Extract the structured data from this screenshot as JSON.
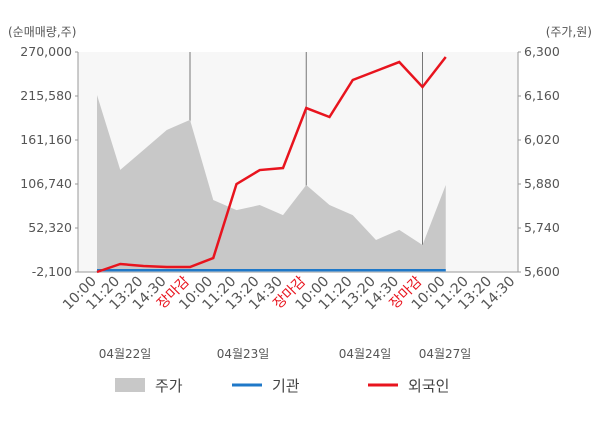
{
  "chart_data": {
    "type": "line",
    "y_axis_label": "(순매매량,주)",
    "y2_axis_label": "(주가,원)",
    "categories": [
      "10:00",
      "11:20",
      "13:20",
      "14:30",
      "장마감",
      "10:00",
      "11:20",
      "13:20",
      "14:30",
      "장마감",
      "10:00",
      "11:20",
      "13:20",
      "14:30",
      "장마감",
      "10:00",
      "11:20",
      "13:20",
      "14:30"
    ],
    "date_labels": [
      "04월22일",
      "04월23일",
      "04월24일",
      "04월27일"
    ],
    "ylim": [
      -2100,
      270000
    ],
    "yticks": [
      {
        "value": -2100,
        "label": "-2,100"
      },
      {
        "value": 52320,
        "label": "52,320"
      },
      {
        "value": 106740,
        "label": "106,740"
      },
      {
        "value": 161160,
        "label": "161,160"
      },
      {
        "value": 215580,
        "label": "215,580"
      },
      {
        "value": 270000,
        "label": "270,000"
      }
    ],
    "y2lim": [
      5600,
      6300
    ],
    "y2ticks": [
      {
        "value": 5600,
        "label": "5,600"
      },
      {
        "value": 5740,
        "label": "5,740"
      },
      {
        "value": 5880,
        "label": "5,880"
      },
      {
        "value": 6020,
        "label": "6,020"
      },
      {
        "value": 6160,
        "label": "6,160"
      },
      {
        "value": 6300,
        "label": "6,300"
      }
    ],
    "series": [
      {
        "name": "주가",
        "color": "#c8c8c8",
        "axis": "y2",
        "kind": "area",
        "values": [
          6163,
          5925,
          5988,
          6052,
          6084,
          5829,
          5797,
          5813,
          5781,
          5877,
          5813,
          5781,
          5702,
          5734,
          5686,
          5877,
          null,
          null,
          null
        ]
      },
      {
        "name": "기관",
        "color": "#1f78c8",
        "values": [
          0,
          0,
          0,
          0,
          0,
          0,
          0,
          0,
          0,
          0,
          0,
          0,
          0,
          0,
          0,
          0,
          null,
          null,
          null
        ]
      },
      {
        "name": "외국인",
        "color": "#e8141e",
        "values": [
          -2100,
          7800,
          5300,
          4100,
          4100,
          15200,
          106700,
          124000,
          126500,
          200700,
          189600,
          235400,
          246500,
          257600,
          226700,
          263800,
          null,
          null,
          null
        ]
      }
    ]
  }
}
